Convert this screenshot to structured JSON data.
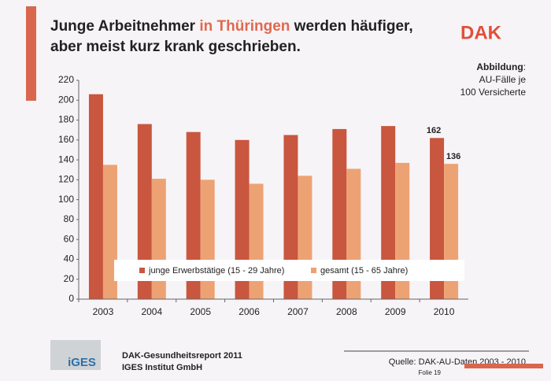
{
  "slide": {
    "title": {
      "before": "Junge Arbeitnehmer",
      "highlight": "in Thüringen",
      "after": "werden häufiger,",
      "line2": "aber meist kurz krank geschrieben."
    },
    "logo": "DAK",
    "note": {
      "label": "Abbildung",
      "colon": ":",
      "line1": "AU-Fälle je",
      "line2": "100 Versicherte"
    },
    "footer": {
      "logo": "iGES",
      "report": "DAK-Gesundheitsreport 2011",
      "institute": "IGES Institut GmbH",
      "source": "Quelle: DAK-AU-Daten 2003 - 2010",
      "page": "Folie 19"
    }
  },
  "chart_data": {
    "type": "bar",
    "categories": [
      "2003",
      "2004",
      "2005",
      "2006",
      "2007",
      "2008",
      "2009",
      "2010"
    ],
    "series": [
      {
        "name": "junge Erwerbstätige (15 - 29 Jahre)",
        "color": "#c9563f",
        "values": [
          206,
          176,
          168,
          160,
          165,
          171,
          174,
          162
        ],
        "value_labels": [
          null,
          null,
          null,
          null,
          null,
          null,
          null,
          "162"
        ]
      },
      {
        "name": "gesamt (15 - 65 Jahre)",
        "color": "#eda274",
        "values": [
          135,
          121,
          120,
          116,
          124,
          131,
          137,
          136
        ],
        "value_labels": [
          null,
          null,
          null,
          null,
          null,
          null,
          null,
          "136"
        ]
      }
    ],
    "ylim": [
      0,
      220
    ],
    "yticks": [
      0,
      20,
      40,
      60,
      80,
      100,
      120,
      140,
      160,
      180,
      200,
      220
    ],
    "grid": false
  }
}
